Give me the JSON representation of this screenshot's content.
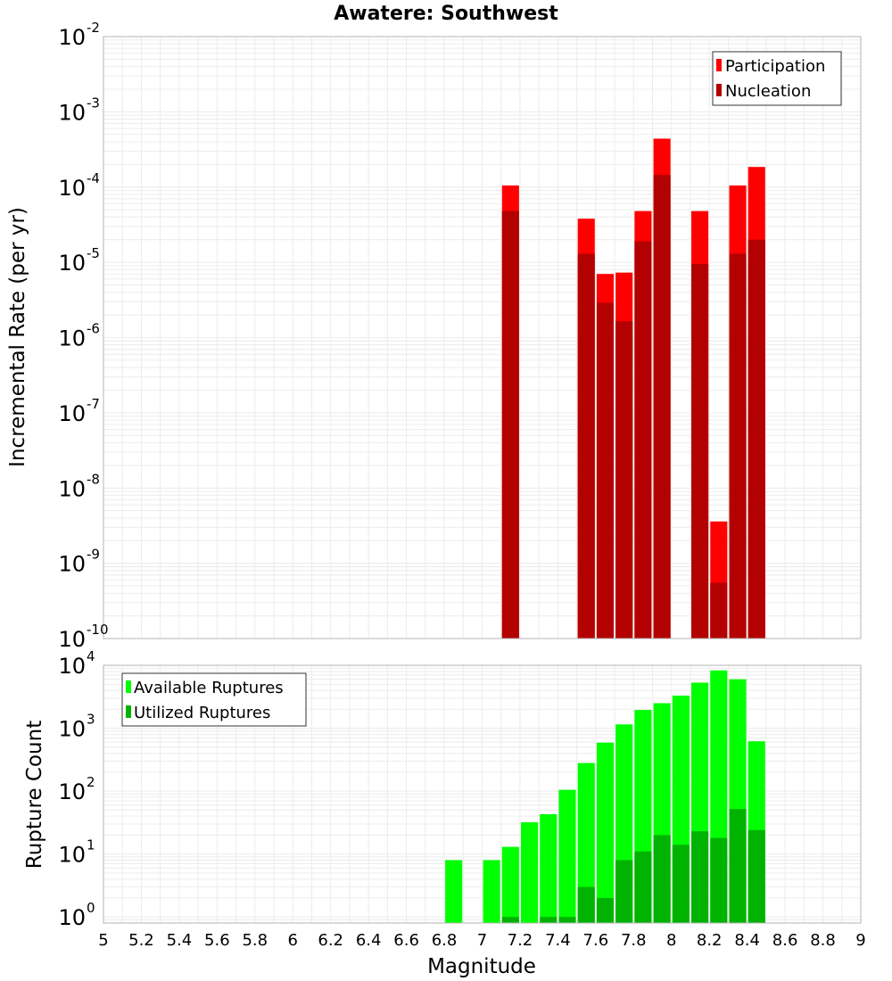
{
  "title": "Awatere: Southwest",
  "x_axis": {
    "label": "Magnitude",
    "range": [
      5,
      9
    ],
    "ticks": [
      "5",
      "5.2",
      "5.4",
      "5.6",
      "5.8",
      "6",
      "6.2",
      "6.4",
      "6.6",
      "6.8",
      "7",
      "7.2",
      "7.4",
      "7.6",
      "7.8",
      "8",
      "8.2",
      "8.4",
      "8.6",
      "8.8",
      "9"
    ]
  },
  "colors": {
    "participation": "#ff0000",
    "nucleation": "#b30000",
    "available": "#00ff00",
    "utilized": "#00b300",
    "grid": "#ececec",
    "frame": "#b4b4b4"
  },
  "chart_data": [
    {
      "type": "bar",
      "name": "rate",
      "ylabel": "Incremental Rate (per yr)",
      "yscale": "log",
      "ylim": [
        1e-10,
        0.01
      ],
      "ytick_bases": [
        "10",
        "10",
        "10",
        "10",
        "10",
        "10",
        "10",
        "10",
        "10"
      ],
      "ytick_exps": [
        "-10",
        "-9",
        "-8",
        "-7",
        "-6",
        "-5",
        "-4",
        "-3",
        "-2"
      ],
      "legend_position": "top-right",
      "bar_width": 0.09,
      "x": [
        7.15,
        7.55,
        7.65,
        7.75,
        7.85,
        7.95,
        8.15,
        8.25,
        8.35,
        8.45
      ],
      "series": [
        {
          "name": "Participation",
          "color": "#ff0000",
          "values": [
            0.000105,
            3.8e-05,
            7e-06,
            7.3e-06,
            4.8e-05,
            0.00044,
            4.8e-05,
            3.6e-09,
            0.000105,
            0.000185
          ]
        },
        {
          "name": "Nucleation",
          "color": "#b30000",
          "values": [
            4.8e-05,
            1.3e-05,
            2.9e-06,
            1.65e-06,
            1.9e-05,
            0.000145,
            9.5e-06,
            5.5e-10,
            1.3e-05,
            2e-05
          ]
        }
      ]
    },
    {
      "type": "bar",
      "name": "count",
      "ylabel": "Rupture Count",
      "yscale": "log",
      "ylim": [
        0.8,
        10000.0
      ],
      "ytick_bases": [
        "10",
        "10",
        "10",
        "10",
        "10"
      ],
      "ytick_exps": [
        "0",
        "1",
        "2",
        "3",
        "4"
      ],
      "legend_position": "top-left",
      "bar_width": 0.09,
      "x": [
        6.85,
        7.05,
        7.15,
        7.25,
        7.35,
        7.45,
        7.55,
        7.65,
        7.75,
        7.85,
        7.95,
        8.05,
        8.15,
        8.25,
        8.35,
        8.45
      ],
      "series": [
        {
          "name": "Available Ruptures",
          "color": "#00ff00",
          "values": [
            8,
            8,
            13,
            32,
            43,
            105,
            280,
            590,
            1150,
            1950,
            2500,
            3300,
            5300,
            8300,
            6000,
            620
          ]
        },
        {
          "name": "Utilized Ruptures",
          "color": "#00b300",
          "values": [
            0,
            0,
            1,
            0,
            1,
            1,
            3,
            2,
            8,
            11,
            20,
            14,
            23,
            18,
            52,
            24
          ]
        }
      ]
    }
  ]
}
